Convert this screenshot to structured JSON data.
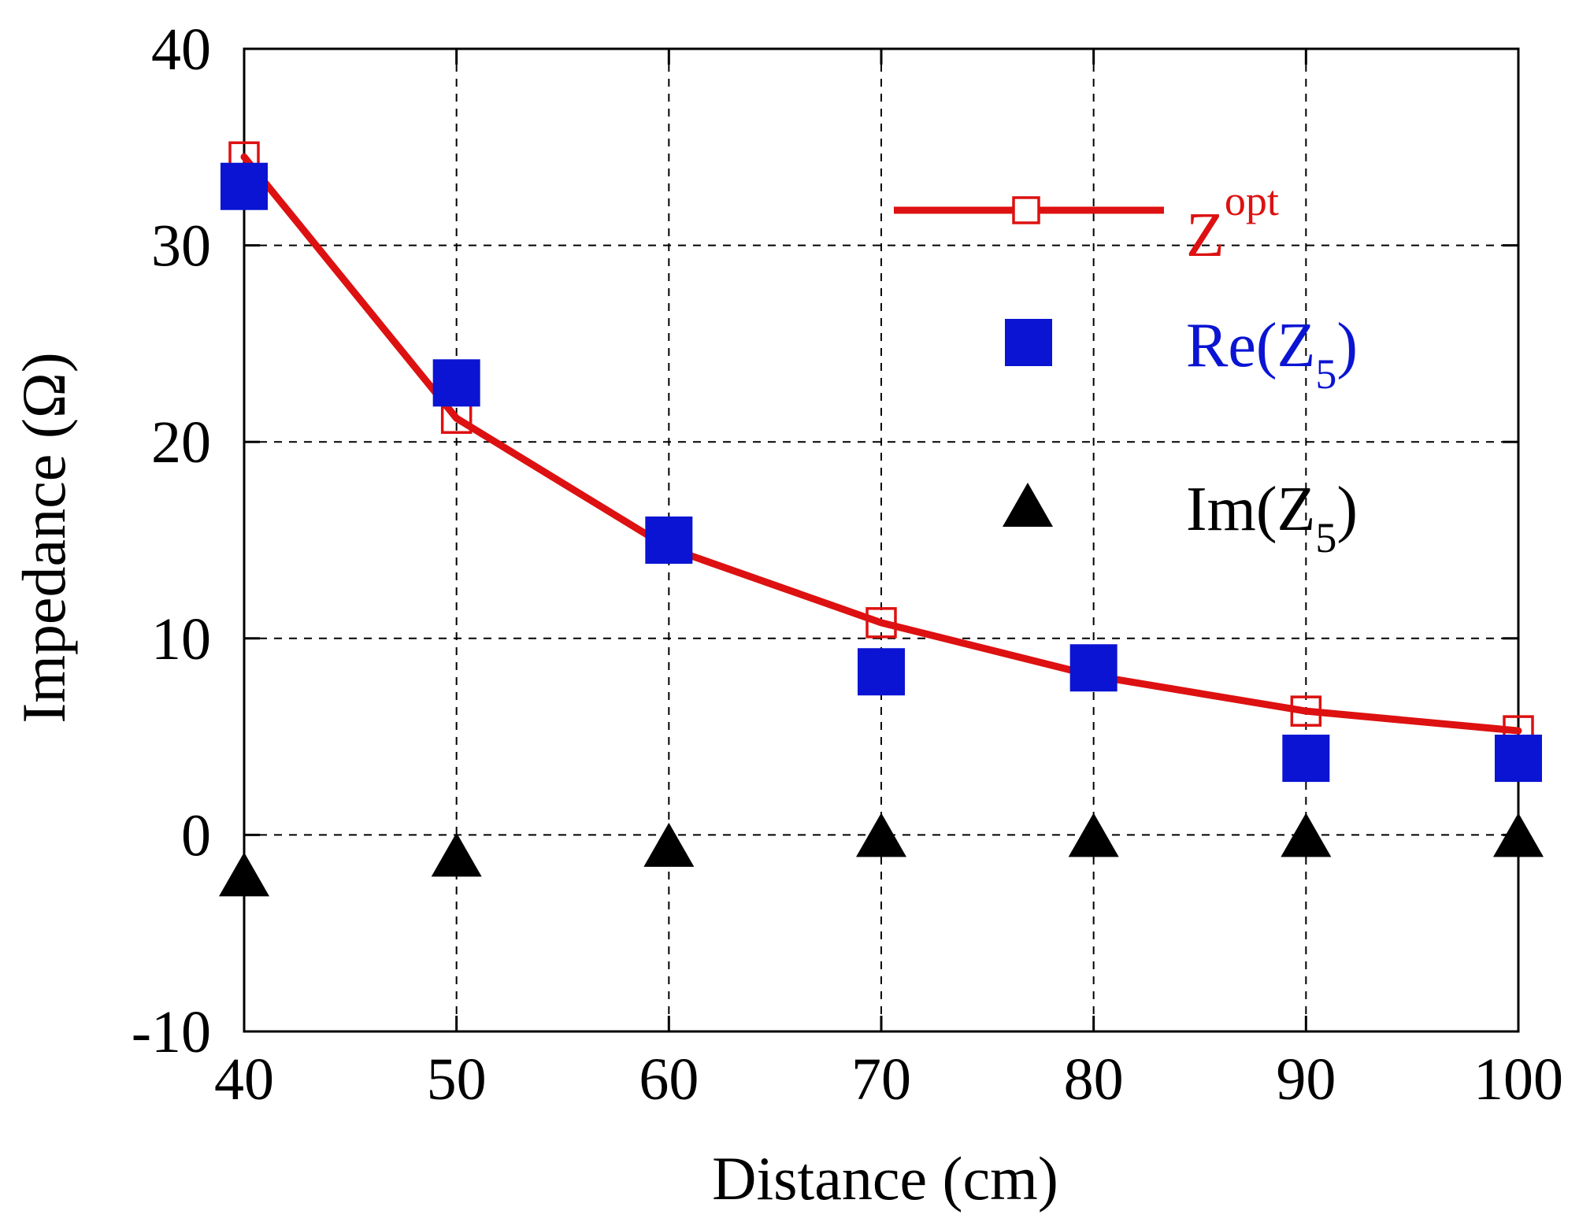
{
  "chart_data": {
    "type": "line",
    "xlabel": "Distance (cm)",
    "ylabel": "Impedance (Ω)",
    "xlim": [
      40,
      100
    ],
    "ylim": [
      -10,
      40
    ],
    "x_ticks": [
      "40",
      "50",
      "60",
      "70",
      "80",
      "90",
      "100"
    ],
    "y_ticks": [
      "-10",
      "0",
      "10",
      "20",
      "30",
      "40"
    ],
    "x_tick_values": [
      40,
      50,
      60,
      70,
      80,
      90,
      100
    ],
    "y_tick_values": [
      -10,
      0,
      10,
      20,
      30,
      40
    ],
    "grid": true,
    "legend_position": "top-right",
    "x": [
      40,
      50,
      60,
      70,
      80,
      90,
      100
    ],
    "series": [
      {
        "name": "Z_opt",
        "legend_main": "Z",
        "legend_sup": "opt",
        "style": "line-open-square",
        "color": "#dd1111",
        "values": [
          34.5,
          21.2,
          14.6,
          10.8,
          8.1,
          6.3,
          5.3
        ]
      },
      {
        "name": "Re(Z5)",
        "legend_main": "Re(Z",
        "legend_sub": "5",
        "legend_end": ")",
        "style": "filled-square",
        "color": "#0a14d2",
        "values": [
          33.0,
          23.0,
          15.0,
          8.3,
          8.5,
          3.9,
          3.9
        ]
      },
      {
        "name": "Im(Z5)",
        "legend_main": "Im(Z",
        "legend_sub": "5",
        "legend_end": ")",
        "style": "filled-triangle",
        "color": "#000000",
        "values": [
          -2.0,
          -1.0,
          -0.5,
          0.0,
          0.0,
          0.0,
          0.0
        ]
      }
    ]
  }
}
